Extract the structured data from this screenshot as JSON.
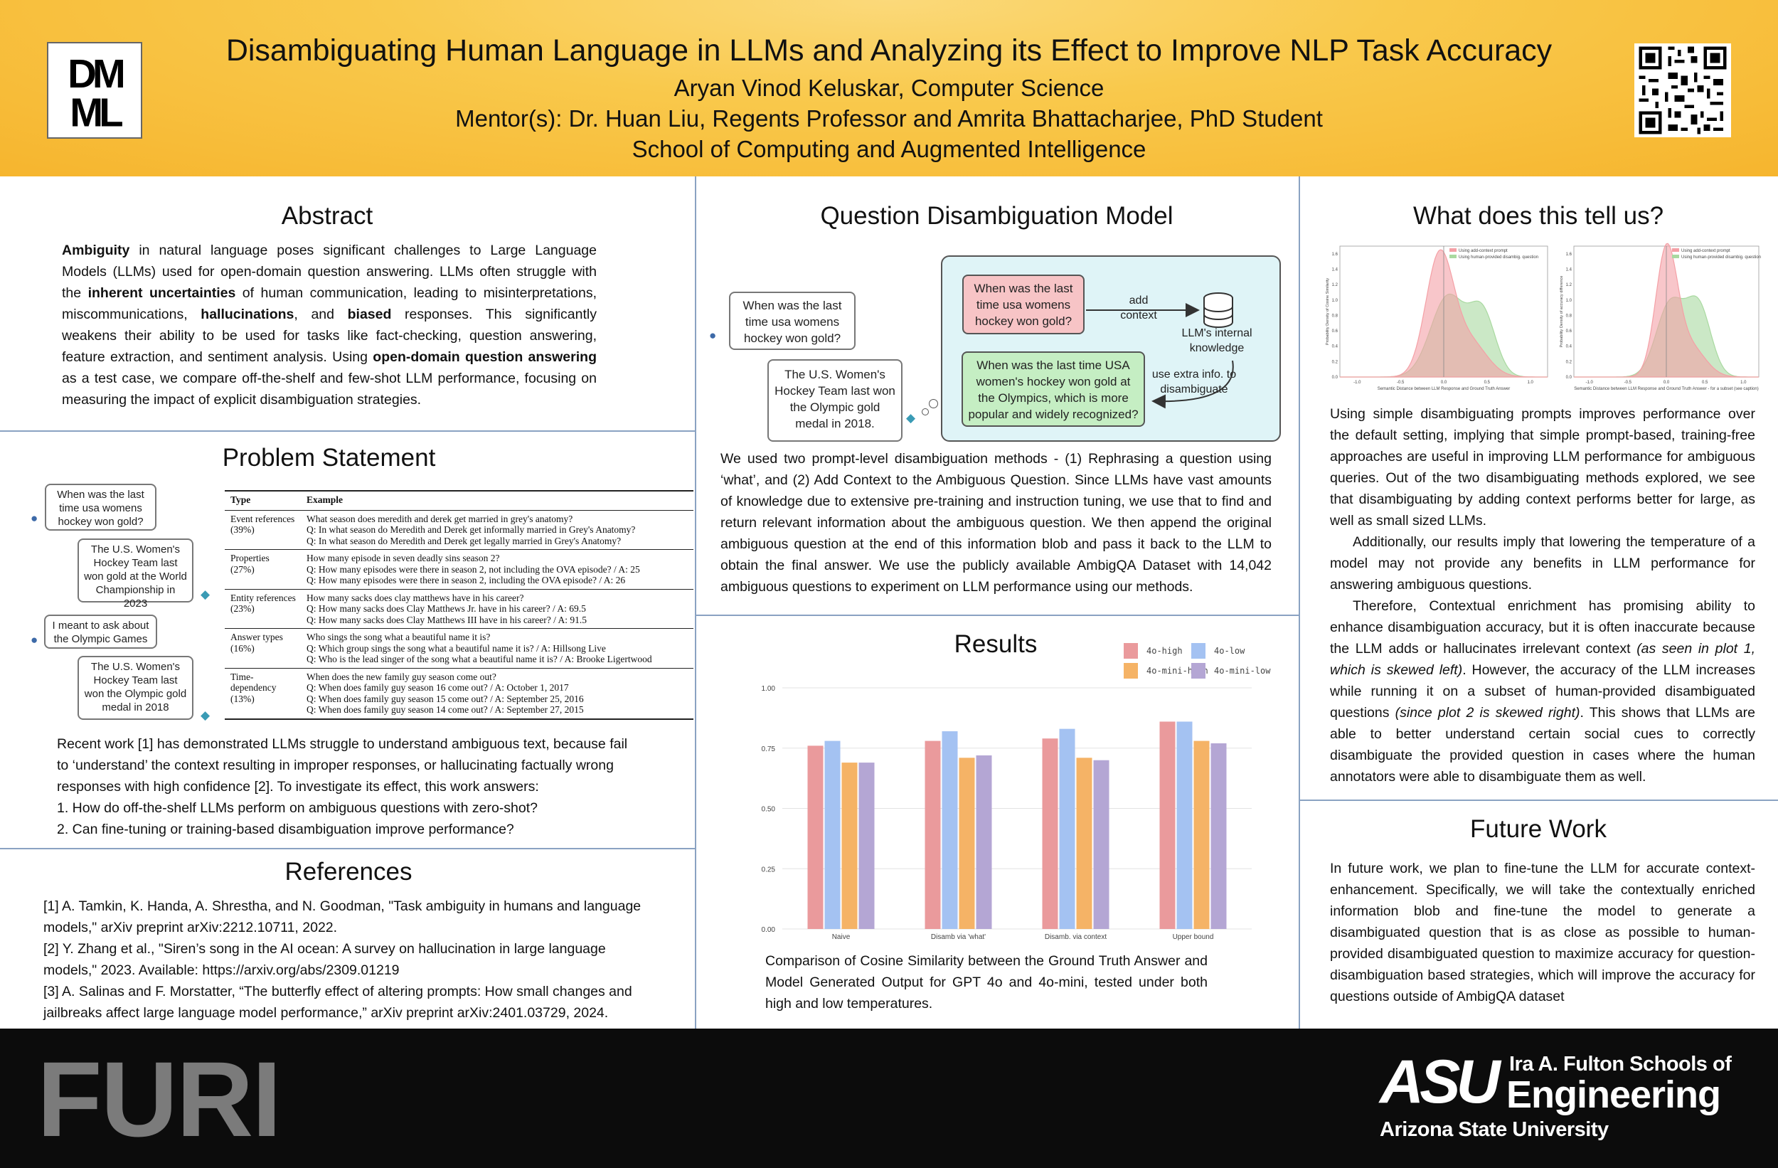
{
  "header": {
    "title": "Disambiguating Human Language in LLMs and Analyzing its Effect to Improve NLP Task Accuracy",
    "author": "Aryan Vinod Keluskar, Computer Science",
    "mentors": "Mentor(s): Dr. Huan Liu, Regents Professor and Amrita Bhattacharjee, PhD Student",
    "school": "School of Computing and Augmented Intelligence",
    "logo_text": "DMML"
  },
  "abstract": {
    "title": "Abstract",
    "t1": "Ambiguity",
    "t2": " in natural language poses significant challenges to Large Language Models (LLMs) used for open-domain question answering. LLMs often struggle with the ",
    "t3": "inherent uncertainties",
    "t4": " of human communication, leading to misinterpretations, miscommunications, ",
    "t5": "hallucinations",
    "t6": ", and ",
    "t7": "biased",
    "t8": " responses. This significantly weakens their ability to be used for tasks like fact-checking, question answering, feature extraction, and sentiment analysis. Using ",
    "t9": "open-domain question answering",
    "t10": " as a test case, we compare off-the-shelf and few-shot LLM performance, focusing on measuring the impact of explicit disambiguation strategies."
  },
  "problem": {
    "title": "Problem Statement",
    "bubbles": [
      "When was the last time usa womens hockey won gold?",
      "The U.S. Women's Hockey Team last won gold at the World Championship in 2023",
      "I meant to ask about the Olympic Games",
      "The U.S. Women's Hockey Team last won the Olympic gold medal in 2018"
    ],
    "table": {
      "headers": [
        "Type",
        "Example"
      ],
      "rows": [
        {
          "type": [
            "Event references",
            "(39%)"
          ],
          "lines": [
            "What season does meredith and derek get married in grey's anatomy?",
            "Q: In what season do Meredith and Derek get informally married in Grey's Anatomy?",
            "Q: In what season do Meredith and Derek get legally married in Grey's Anatomy?"
          ]
        },
        {
          "type": [
            "Properties",
            "(27%)"
          ],
          "lines": [
            "How many episode in seven deadly sins season 2?",
            "Q: How many episodes were there in season 2, not including the OVA episode? / A: 25",
            "Q: How many episodes were there in season 2, including the OVA episode? / A: 26"
          ]
        },
        {
          "type": [
            "Entity references",
            "(23%)"
          ],
          "lines": [
            "How many sacks does clay matthews have in his career?",
            "Q: How many sacks does Clay Matthews Jr. have in his career? / A: 69.5",
            "Q: How many sacks does Clay Matthews III have in his career? / A: 91.5"
          ]
        },
        {
          "type": [
            "Answer types",
            "(16%)"
          ],
          "lines": [
            "Who sings the song what a beautiful name it is?",
            "Q: Which group sings the song what a beautiful name it is? / A: Hillsong Live",
            "Q: Who is the lead singer of the song what a beautiful name it is? / A: Brooke Ligertwood"
          ]
        },
        {
          "type": [
            "Time-",
            "dependency",
            "(13%)"
          ],
          "lines": [
            "When does the new family guy season come out?",
            "Q: When does family guy season 16 come out? / A: October 1, 2017",
            "Q: When does family guy season 15 come out? / A: September 25, 2016",
            "Q: When does family guy season 14 come out? / A: September 27, 2015"
          ]
        }
      ]
    },
    "text": [
      "Recent work [1] has demonstrated LLMs struggle to understand ambiguous text, because fail",
      "to ‘understand’ the context resulting in improper responses, or hallucinating factually wrong",
      "responses with high confidence [2]. To investigate its effect, this work answers:",
      "1. How do off-the-shelf LLMs perform on ambiguous questions with zero-shot?",
      "2. Can fine-tuning or training-based disambiguation improve performance?"
    ]
  },
  "references": {
    "title": "References",
    "items": [
      "[1] A. Tamkin, K. Handa, A. Shrestha, and N. Goodman, \"Task ambiguity in humans and language models,\" arXiv preprint arXiv:2212.10711, 2022.",
      "[2] Y. Zhang et al., \"Siren’s song in the AI ocean: A survey on hallucination in large language models,\" 2023. Available: https://arxiv.org/abs/2309.01219",
      "[3] A. Salinas and F. Morstatter, “The butterfly effect of altering prompts: How small changes and jailbreaks affect large language model performance,” arXiv preprint arXiv:2401.03729, 2024."
    ]
  },
  "model": {
    "title": "Question Disambiguation Model",
    "q_bubble": "When was the last time usa womens hockey won gold?",
    "a_bubble": "The U.S. Women's Hockey Team last won the Olympic gold medal in 2018.",
    "pink_box": "When was the last time usa womens hockey won gold?",
    "add_context": "add context",
    "knowledge": "LLM's internal knowledge",
    "green_box": "When was the last time USA women's hockey won gold at the Olympics, which is more popular and widely recognized?",
    "use_extra": "use extra info. to disambiguate",
    "text": "We used two prompt-level disambiguation methods - (1) Rephrasing a question using ‘what’, and (2) Add Context to the Ambiguous Question. Since LLMs have vast amounts of knowledge due to extensive pre-training and instruction tuning, we use that to find and return relevant information about the ambiguous question. We then append the original ambiguous question at the end of this information blob and pass it back to the LLM to obtain the final answer. We use the publicly available AmbigQA Dataset with 14,042 ambiguous questions to experiment on LLM performance using our methods."
  },
  "results": {
    "title": "Results",
    "caption": "Comparison of Cosine Similarity between the Ground Truth Answer and Model Generated Output for GPT 4o and 4o-mini, tested under both high and low temperatures."
  },
  "chart_data": [
    {
      "type": "bar",
      "categories": [
        "Naive",
        "Disamb via 'what'",
        "Disamb. via context",
        "Upper bound"
      ],
      "series": [
        {
          "name": "4o-high",
          "color": "#ea9a9c",
          "values": [
            0.76,
            0.78,
            0.79,
            0.86
          ]
        },
        {
          "name": "4o-low",
          "color": "#a4c2f2",
          "values": [
            0.78,
            0.82,
            0.83,
            0.86
          ]
        },
        {
          "name": "4o-mini-high",
          "color": "#f5b366",
          "values": [
            0.69,
            0.71,
            0.71,
            0.78
          ]
        },
        {
          "name": "4o-mini-low",
          "color": "#b4a6d4",
          "values": [
            0.69,
            0.72,
            0.7,
            0.77
          ]
        }
      ],
      "ylim": [
        0,
        1.0
      ],
      "yticks": [
        "0.00",
        "0.25",
        "0.50",
        "0.75",
        "1.00"
      ],
      "grid": true,
      "legend": "top-right"
    },
    {
      "type": "area",
      "legend": [
        "Using add-context prompt",
        "Using human-provided disambig. question"
      ],
      "xlabel": "Semantic Distance between LLM Response and Ground Truth Answer",
      "ylabel": "Probability Density of Cosine Similarity",
      "xticks": [
        "-1.0",
        "-0.5",
        "0.0",
        "0.5",
        "1.0"
      ],
      "yticks": [
        "0.0",
        "0.2",
        "0.4",
        "0.6",
        "0.8",
        "1.0",
        "1.2",
        "1.4",
        "1.6"
      ],
      "colors": [
        "#f4a0a6",
        "#a9d9a0"
      ]
    },
    {
      "type": "area",
      "legend": [
        "Using add-context prompt",
        "Using human-provided disambig. question"
      ],
      "xlabel": "Semantic Distance between LLM Response and Ground Truth Answer - for a subset (see caption)",
      "ylabel": "Probability Density of accuracy difference",
      "xticks": [
        "-1.0",
        "-0.5",
        "0.0",
        "0.5",
        "1.0"
      ],
      "yticks": [
        "0.0",
        "0.2",
        "0.4",
        "0.6",
        "0.8",
        "1.0",
        "1.2",
        "1.4",
        "1.6"
      ],
      "colors": [
        "#f4a0a6",
        "#a9d9a0"
      ]
    }
  ],
  "tell": {
    "title": "What does this tell us?",
    "p1a": "Using simple disambiguating prompts improves performance over the default setting, implying that simple prompt-based, training-free approaches are useful in improving LLM performance for ambiguous queries. Out of the two disambiguating methods explored, we see that disambiguating by adding context performs better for large, as well as small sized LLMs.",
    "p2": "Additionally, our results imply that lowering the temperature of a model may not provide any benefits in LLM performance for answering ambiguous questions.",
    "p3a": "Therefore, Contextual enrichment has promising ability to enhance disambiguation accuracy, but it is often inaccurate because the LLM adds or hallucinates irrelevant context ",
    "p3b": "(as seen in plot 1, which is skewed left)",
    "p3c": ". However, the accuracy of the LLM increases while running it on a subset of human-provided disambiguated questions ",
    "p3d": "(since plot 2 is skewed right)",
    "p3e": ". This shows that LLMs are able to better understand certain social cues to correctly disambiguate the provided question in cases where the human annotators were able to disambiguate them as well."
  },
  "future": {
    "title": "Future Work",
    "text": "In future work, we plan to fine-tune the LLM for accurate context-enhancement. Specifically, we will take the contextually enriched information blob and fine-tune the model to generate a disambiguated question that is as close as possible to human-provided disambiguated question to maximize accuracy for question-disambiguation based strategies, which will improve the accuracy for questions outside of AmbigQA dataset"
  },
  "footer": {
    "furi": "FURI",
    "asu": "ASU",
    "school_line1": "Ira A. Fulton Schools of",
    "school_line2": "Engineering",
    "university": "Arizona State University"
  }
}
